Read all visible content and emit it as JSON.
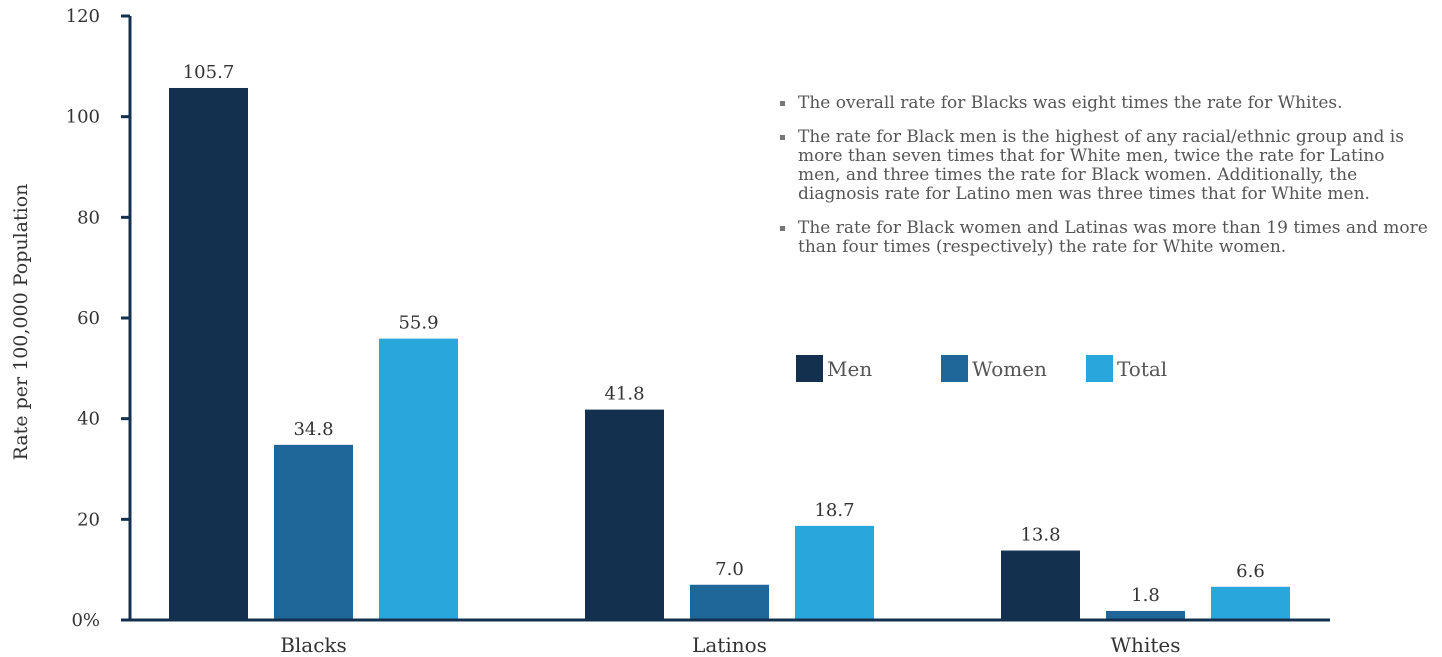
{
  "chart_data": {
    "type": "bar",
    "categories": [
      "Blacks",
      "Latinos",
      "Whites"
    ],
    "series": [
      {
        "name": "Men",
        "values": [
          105.7,
          41.8,
          13.8
        ],
        "labels": [
          "105.7",
          "41.8",
          "13.8"
        ],
        "color": "#14304f"
      },
      {
        "name": "Women",
        "values": [
          34.8,
          7.0,
          1.8
        ],
        "labels": [
          "34.8",
          "7.0",
          "1.8"
        ],
        "color": "#1f6699"
      },
      {
        "name": "Total",
        "values": [
          55.9,
          18.7,
          6.6
        ],
        "labels": [
          "55.9",
          "18.7",
          "6.6"
        ],
        "color": "#29a6dc"
      }
    ],
    "ylabel": "Rate per 100,000 Population",
    "ylim": [
      0,
      120
    ],
    "yticks": [
      0,
      20,
      40,
      60,
      80,
      100,
      120
    ],
    "ytick_labels": [
      "0%",
      "20",
      "40",
      "60",
      "80",
      "100",
      "120"
    ],
    "grid": false,
    "legend": "center-right",
    "axis_color": "#14304f"
  },
  "notes": [
    "The overall rate for Blacks was eight times the rate for Whites.",
    "The rate for Black men is the highest of any racial/ethnic group and is more than seven times that for White men, twice the rate for Latino men, and three times the rate for Black women. Additionally, the diagnosis rate for Latino men was three times that for White men.",
    "The rate for Black women and Latinas was more than 19 times and more than four times (respectively) the rate for White women."
  ]
}
